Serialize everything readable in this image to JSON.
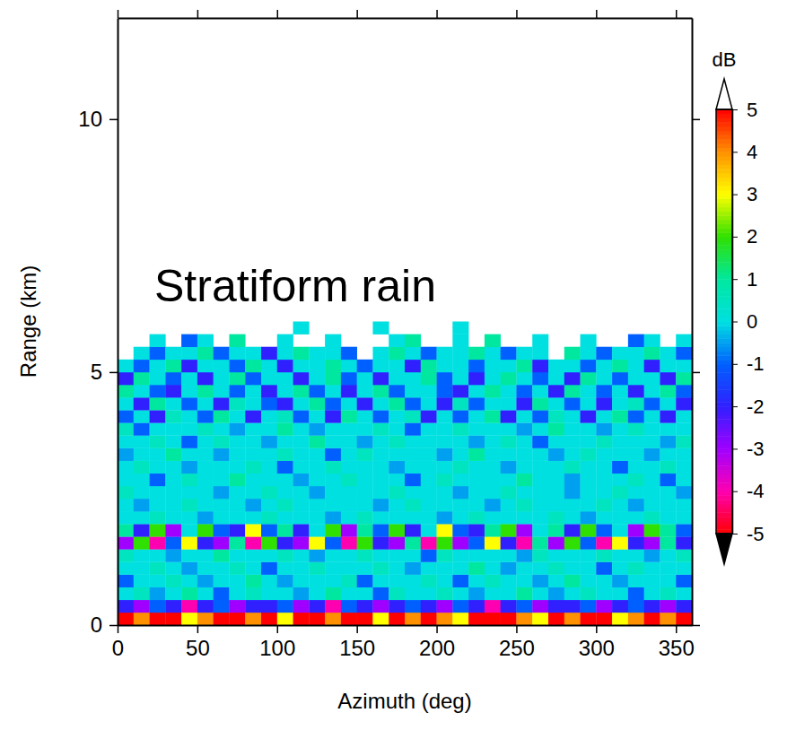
{
  "chart_data": {
    "type": "heatmap",
    "annotation": "Stratiform rain",
    "x_label": "Azimuth (deg)",
    "y_label": "Range (km)",
    "xlim": [
      0,
      360
    ],
    "ylim": [
      0,
      12
    ],
    "xticks": [
      0,
      50,
      100,
      150,
      200,
      250,
      300,
      350
    ],
    "yticks": [
      0,
      5,
      10
    ],
    "x_bins": [
      0,
      10,
      20,
      30,
      40,
      50,
      60,
      70,
      80,
      90,
      100,
      110,
      120,
      130,
      140,
      150,
      160,
      170,
      180,
      190,
      200,
      210,
      220,
      230,
      240,
      250,
      260,
      270,
      280,
      290,
      300,
      310,
      320,
      330,
      340,
      350,
      360
    ],
    "y_bins": [
      0,
      0.25,
      0.5,
      0.75,
      1,
      1.25,
      1.5,
      1.75,
      2,
      2.25,
      2.5,
      2.75,
      3,
      3.25,
      3.5,
      3.75,
      4,
      4.25,
      4.5,
      4.75,
      5,
      5.25,
      5.5,
      5.75,
      6
    ],
    "values": [
      [
        5,
        4,
        -5,
        5,
        3,
        4,
        5,
        -5,
        4,
        5,
        3,
        5,
        -5,
        4,
        5,
        5,
        3,
        -5,
        4,
        5,
        4,
        3,
        5,
        -5,
        5,
        4,
        3,
        5,
        4,
        -5,
        5,
        3,
        4,
        5,
        4,
        5
      ],
      [
        -2,
        -3,
        -1,
        -2,
        -4,
        -2,
        -1,
        -3,
        -2,
        -2,
        -1,
        -3,
        -2,
        -4,
        -1,
        -2,
        -3,
        -2,
        -1,
        -2,
        -3,
        -1,
        -2,
        -4,
        -2,
        -1,
        -3,
        -2,
        -2,
        -1,
        -3,
        -2,
        -1,
        -2,
        -3,
        -2
      ],
      [
        0,
        0.5,
        -0.5,
        0,
        1,
        0,
        -1,
        0,
        0.5,
        0,
        0,
        -0.5,
        0,
        1,
        0,
        0,
        -1,
        0.5,
        0,
        0,
        0.5,
        0,
        -0.5,
        0,
        0,
        1,
        0,
        -0.5,
        0,
        0.5,
        0,
        0,
        -1,
        0,
        0.5,
        0
      ],
      [
        -1,
        0,
        0,
        0.5,
        0,
        -0.5,
        0,
        0,
        1,
        0,
        -0.5,
        0,
        0,
        0,
        0.5,
        -1,
        0,
        0,
        0,
        0.5,
        0,
        -1,
        0,
        0.5,
        0,
        0,
        -0.5,
        0,
        1,
        0,
        0,
        -0.5,
        0,
        0,
        0,
        -1
      ],
      [
        0,
        0,
        0.5,
        0,
        -0.5,
        0,
        0,
        0.5,
        0,
        -1,
        0,
        0,
        0.5,
        0,
        0,
        0,
        0.5,
        0,
        -0.5,
        0,
        0,
        0,
        1,
        0,
        -0.5,
        0,
        0,
        0.5,
        0,
        0,
        -1,
        0,
        0.5,
        0,
        0,
        0
      ],
      [
        0.5,
        0,
        0,
        -0.5,
        0,
        0,
        1,
        0,
        0,
        0,
        0.5,
        0,
        -0.5,
        0,
        0,
        0.5,
        0,
        0,
        0,
        -1,
        0.5,
        0,
        0,
        0,
        0,
        -0.5,
        0.5,
        0,
        0,
        0,
        0.5,
        0,
        0,
        -0.5,
        0,
        0.5
      ],
      [
        -3,
        2,
        -4,
        -1,
        3,
        -2,
        -3,
        1,
        -4,
        2,
        -2,
        -3,
        3,
        -1,
        -4,
        2,
        -2,
        -3,
        1,
        -4,
        2,
        -3,
        -1,
        3,
        -2,
        -4,
        1,
        -3,
        2,
        -1,
        -4,
        3,
        -2,
        -3,
        1,
        -2
      ],
      [
        1,
        -2,
        2,
        -3,
        0,
        2,
        -1,
        -2,
        3,
        -1,
        1,
        -2,
        0,
        2,
        -3,
        1,
        -1,
        2,
        -2,
        0,
        3,
        -1,
        -2,
        1,
        2,
        -3,
        0,
        1,
        -2,
        2,
        -1,
        0,
        -3,
        2,
        1,
        -1
      ],
      [
        0,
        0,
        0.5,
        0,
        0,
        -0.5,
        0,
        0,
        0,
        0.5,
        0,
        0,
        0,
        -0.5,
        0,
        0.5,
        0,
        0,
        0,
        0,
        -0.5,
        0,
        0.5,
        0,
        0,
        0,
        0,
        0.5,
        0,
        -0.5,
        0,
        0,
        0,
        0.5,
        0,
        0
      ],
      [
        0,
        -0.5,
        0,
        0,
        0.5,
        0,
        0,
        0,
        -0.5,
        0,
        0.5,
        0,
        0,
        0,
        0,
        0,
        -0.5,
        0,
        0.5,
        0,
        0,
        0,
        0,
        -0.5,
        0,
        0.5,
        0,
        0,
        0,
        0,
        0.5,
        0,
        -0.5,
        0,
        0,
        0
      ],
      [
        0.5,
        0,
        0,
        0,
        0,
        0,
        -0.5,
        0,
        0,
        0.5,
        0,
        0,
        -0.5,
        0,
        0,
        0,
        0,
        0.5,
        0,
        0,
        0,
        -0.5,
        0,
        0,
        0.5,
        0,
        0,
        0,
        -0.5,
        0,
        0,
        0.5,
        0,
        0,
        0,
        -0.5
      ],
      [
        0,
        0,
        -1,
        0,
        0.5,
        0,
        0,
        1,
        0,
        0,
        0,
        -0.5,
        0,
        0,
        0.5,
        0,
        0,
        0,
        -1,
        0,
        0.5,
        0,
        0,
        0,
        0,
        1,
        0,
        0,
        -0.5,
        0,
        0,
        0,
        0.5,
        0,
        -1,
        0
      ],
      [
        0,
        0.5,
        0,
        0,
        -0.5,
        0,
        0,
        0,
        0.5,
        0,
        -1,
        0,
        0,
        0.5,
        0,
        0,
        0,
        -0.5,
        0,
        0,
        0,
        0.5,
        0,
        0,
        -0.5,
        0,
        0,
        0,
        0.5,
        0,
        0,
        -1,
        0,
        0,
        0.5,
        0
      ],
      [
        -0.5,
        0,
        0,
        1,
        0,
        0,
        -0.5,
        0,
        0,
        0,
        0.5,
        0,
        0,
        -1,
        0,
        0.5,
        0,
        0,
        0,
        0,
        -0.5,
        0,
        1,
        0,
        0,
        0,
        0,
        -0.5,
        0,
        0.5,
        0,
        0,
        0,
        -0.5,
        0,
        0
      ],
      [
        0,
        0,
        0.5,
        0,
        -1,
        0,
        0.5,
        0,
        0,
        -0.5,
        0,
        0,
        1,
        0,
        0,
        -0.5,
        0,
        0.5,
        0,
        0,
        0,
        0,
        -0.5,
        0,
        0.5,
        0,
        -1,
        0,
        0,
        0,
        0.5,
        0,
        0,
        0,
        -0.5,
        0.5
      ],
      [
        0.5,
        -1,
        0,
        0,
        0,
        0.5,
        0,
        -0.5,
        0,
        0,
        1,
        0,
        -0.5,
        0,
        0,
        0,
        0.5,
        0,
        -1,
        0,
        0,
        0.5,
        0,
        0,
        0,
        -0.5,
        0,
        1,
        0,
        0,
        -0.5,
        0,
        0.5,
        0,
        0,
        0
      ],
      [
        -1,
        0,
        -2,
        0.5,
        0,
        -1,
        1,
        0,
        -2,
        0,
        0.5,
        -1,
        0,
        -2,
        1,
        0,
        -1,
        0,
        0.5,
        -2,
        0,
        -1,
        0,
        1,
        -2,
        0,
        -1,
        0.5,
        0,
        -2,
        0,
        1,
        -1,
        0,
        -2,
        0
      ],
      [
        0,
        -2,
        1,
        0,
        -1,
        0,
        -2,
        0.5,
        0,
        -1,
        -2,
        0,
        1,
        -1,
        0,
        -2,
        0,
        1,
        -1,
        0,
        -2,
        0.5,
        -1,
        0,
        0,
        -2,
        1,
        0,
        -1,
        0,
        -2,
        0,
        0.5,
        -1,
        0,
        -2
      ],
      [
        1,
        0,
        -1,
        -2,
        0,
        1,
        0,
        -1,
        0,
        -2,
        0,
        1,
        -1,
        0,
        -2,
        0,
        1,
        -1,
        0,
        0,
        -1,
        -2,
        0,
        1,
        0,
        -1,
        0,
        -2,
        1,
        0,
        -1,
        0,
        -2,
        0,
        1,
        -1
      ],
      [
        -2,
        1,
        0,
        -1,
        0,
        -2,
        0,
        1,
        -1,
        0,
        0,
        -2,
        0,
        1,
        -1,
        0,
        -2,
        0,
        0,
        1,
        -1,
        0,
        -2,
        0,
        1,
        0,
        -1,
        0,
        -2,
        1,
        0,
        -1,
        0,
        0,
        -2,
        1
      ],
      [
        0,
        -1,
        0,
        1,
        -2,
        0,
        0,
        -1,
        1,
        0,
        -2,
        0,
        0,
        1,
        0,
        -1,
        0,
        0,
        -2,
        1,
        0,
        0,
        -1,
        0,
        0,
        1,
        -2,
        0,
        0,
        -1,
        0,
        1,
        0,
        -2,
        0,
        0
      ],
      [
        null,
        0,
        -1,
        0,
        0,
        1,
        -1,
        0,
        0,
        -2,
        0,
        1,
        0,
        0,
        -1,
        null,
        0,
        1,
        0,
        -1,
        0,
        0,
        1,
        0,
        -1,
        0,
        0,
        null,
        1,
        0,
        -1,
        0,
        0,
        1,
        0,
        -1
      ],
      [
        null,
        null,
        0,
        null,
        -1,
        0,
        null,
        1,
        null,
        null,
        0,
        null,
        null,
        0,
        null,
        null,
        null,
        0,
        1,
        null,
        null,
        0,
        null,
        1,
        null,
        null,
        0,
        null,
        null,
        0,
        null,
        null,
        -1,
        0,
        null,
        0
      ],
      [
        null,
        null,
        null,
        null,
        null,
        null,
        null,
        null,
        null,
        null,
        null,
        0,
        null,
        null,
        null,
        null,
        0,
        null,
        null,
        null,
        null,
        0,
        null,
        null,
        null,
        null,
        null,
        null,
        null,
        null,
        null,
        null,
        null,
        null,
        null,
        null
      ]
    ],
    "colorbar": {
      "label": "dB",
      "range": [
        -5,
        5
      ],
      "ticks": [
        -5,
        -4,
        -3,
        -2,
        -1,
        0,
        1,
        2,
        3,
        4,
        5
      ]
    }
  }
}
